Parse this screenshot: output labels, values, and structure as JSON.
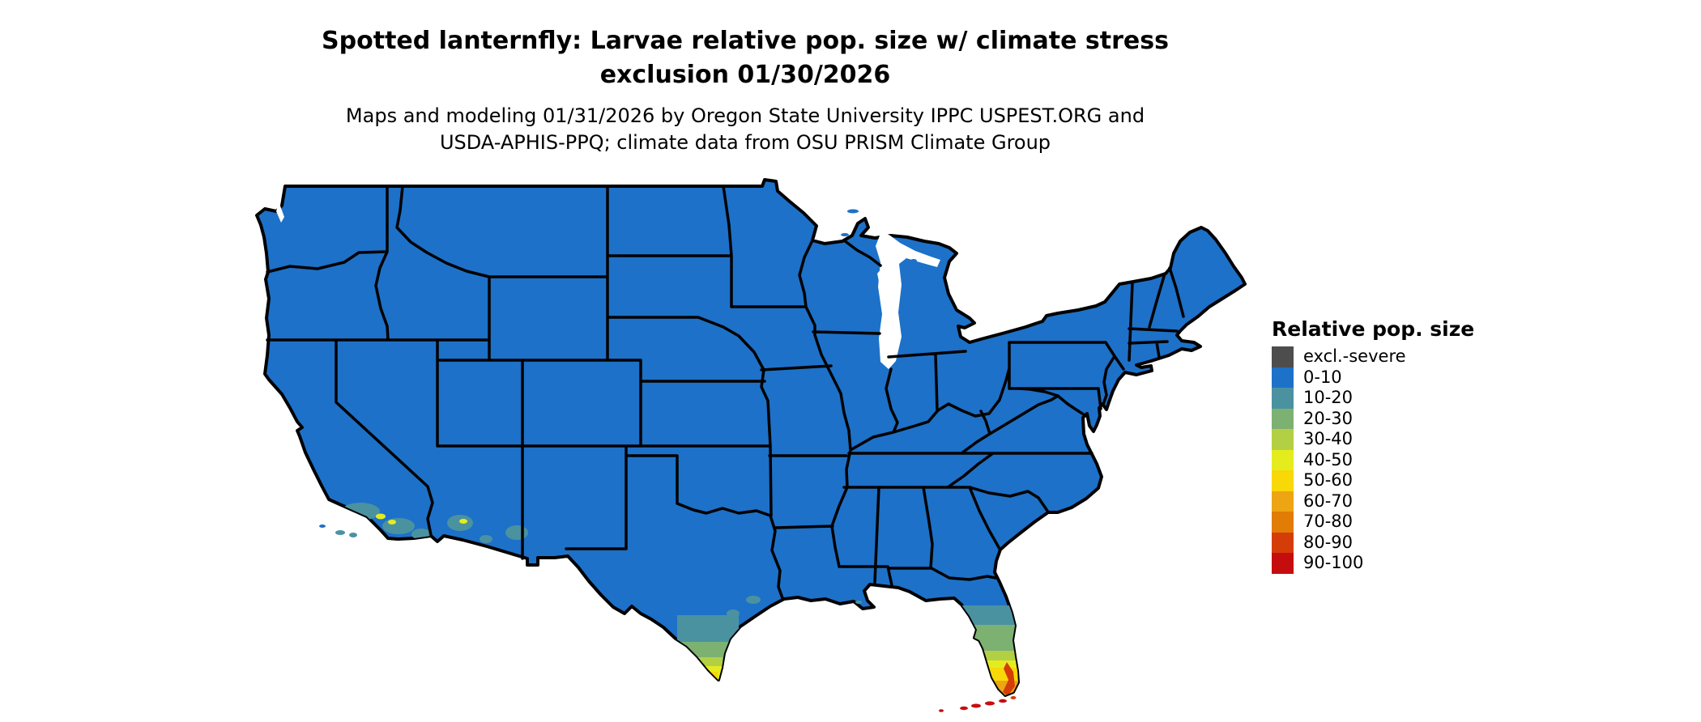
{
  "header": {
    "title": "Spotted lanternfly: Larvae relative pop. size w/ climate stress\nexclusion 01/30/2026",
    "subtitle": "Maps and modeling 01/31/2026 by Oregon State University IPPC USPEST.ORG and\nUSDA-APHIS-PPQ; climate data from OSU PRISM Climate Group"
  },
  "legend": {
    "title": "Relative pop. size",
    "items": [
      {
        "label": "excl.-severe",
        "color": "#4d4d4d"
      },
      {
        "label": "0-10",
        "color": "#1d71c8"
      },
      {
        "label": "10-20",
        "color": "#4b92a1"
      },
      {
        "label": "20-30",
        "color": "#7db172"
      },
      {
        "label": "30-40",
        "color": "#b3d044"
      },
      {
        "label": "40-50",
        "color": "#e5ec1e"
      },
      {
        "label": "50-60",
        "color": "#f8d807"
      },
      {
        "label": "60-70",
        "color": "#eda513"
      },
      {
        "label": "70-80",
        "color": "#e17c05"
      },
      {
        "label": "80-90",
        "color": "#d43d08"
      },
      {
        "label": "90-100",
        "color": "#c60d0e"
      }
    ]
  },
  "map": {
    "region": "Continental United States",
    "base_class": "0-10",
    "water_and_background_color": "#ffffff",
    "border_color": "#000000",
    "hotspots": [
      {
        "area": "South Florida peninsula and Keys",
        "classes": [
          "10-20",
          "20-30",
          "30-40",
          "40-50",
          "50-60",
          "60-70",
          "70-80",
          "80-90",
          "90-100"
        ]
      },
      {
        "area": "South Texas (Rio Grande Valley and coast)",
        "classes": [
          "10-20",
          "20-30",
          "30-40",
          "40-50",
          "50-60"
        ]
      },
      {
        "area": "Southern California coast and islands",
        "classes": [
          "10-20",
          "40-50"
        ]
      },
      {
        "area": "Southwestern Arizona",
        "classes": [
          "10-20",
          "40-50"
        ]
      },
      {
        "area": "Louisiana delta fringe",
        "classes": [
          "10-20"
        ]
      }
    ]
  }
}
